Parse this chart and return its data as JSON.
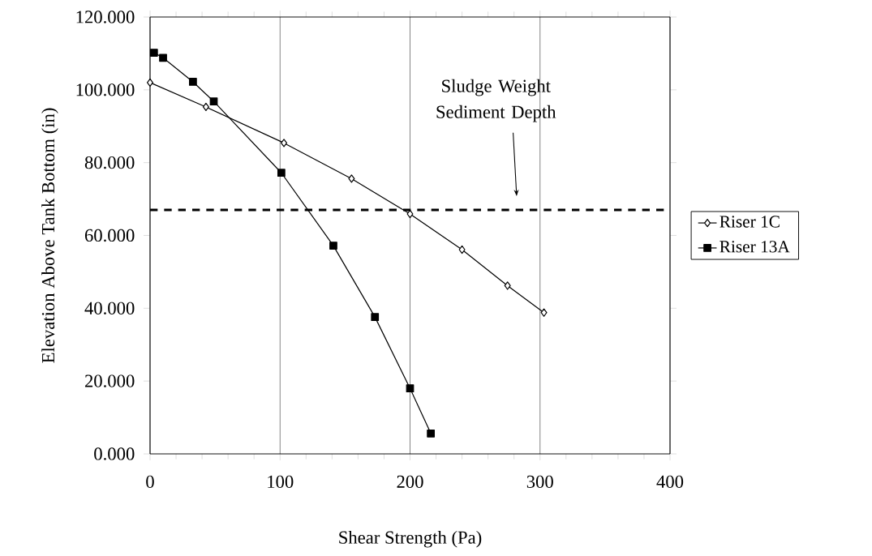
{
  "chart_data": {
    "type": "line",
    "xlabel": "Shear Strength (Pa)",
    "ylabel": "Elevation Above Tank Bottom (in)",
    "xlim": [
      0,
      400
    ],
    "xticks": [
      0,
      100,
      200,
      300,
      400
    ],
    "ylim": [
      0,
      120
    ],
    "yticks": [
      {
        "value": 0,
        "label": "0.000"
      },
      {
        "value": 20,
        "label": "20.000"
      },
      {
        "value": 40,
        "label": "40.000"
      },
      {
        "value": 60,
        "label": "60.000"
      },
      {
        "value": 80,
        "label": "80.000"
      },
      {
        "value": 100,
        "label": "100.000"
      },
      {
        "value": 120,
        "label": "120.000"
      }
    ],
    "grid": "x",
    "legend": "right",
    "series": [
      {
        "name": "Riser 1C",
        "color": "#000000",
        "marker": "diamond",
        "x": [
          0,
          43,
          103,
          155,
          200,
          240,
          275,
          303
        ],
        "values": [
          102.0,
          95.3,
          85.4,
          75.6,
          65.9,
          56.1,
          46.2,
          38.8
        ]
      },
      {
        "name": "Riser 13A",
        "color": "#000000",
        "marker": "square",
        "x": [
          3,
          10,
          33,
          49,
          101,
          141,
          173,
          200,
          216
        ],
        "values": [
          110.2,
          108.8,
          102.2,
          96.8,
          77.2,
          57.2,
          37.6,
          18.0,
          5.6
        ]
      }
    ],
    "ref_lines": [
      {
        "axis": "y",
        "value": 67,
        "line_style": "dashed",
        "color": "#000000"
      }
    ],
    "annotations": [
      "Sludge Weight Sediment Depth"
    ]
  }
}
